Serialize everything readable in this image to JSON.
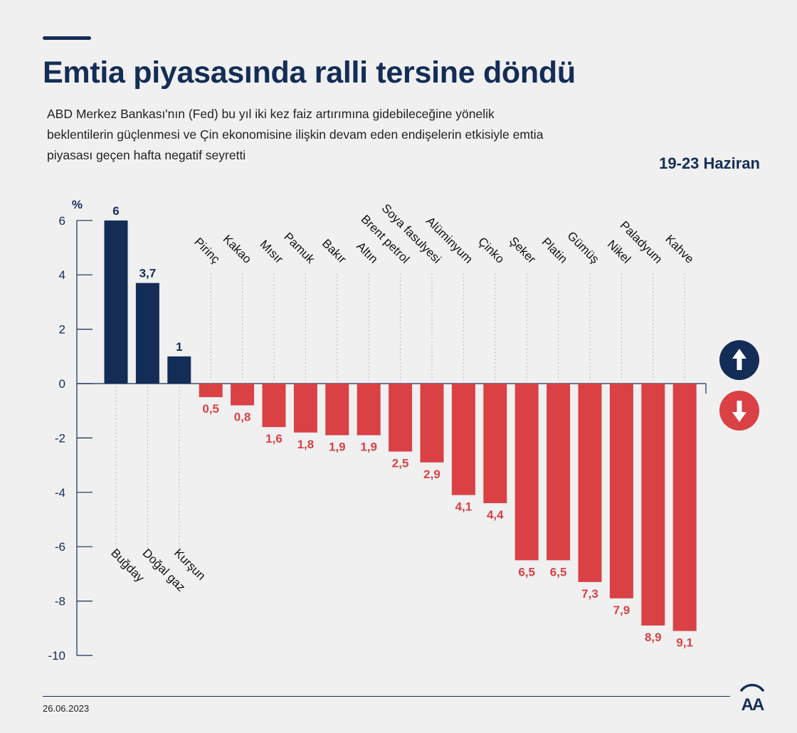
{
  "header": {
    "title": "Emtia piyasasında ralli tersine döndü",
    "subtitle": "ABD Merkez Bankası'nın (Fed) bu yıl iki kez faiz artırımına gidebileceğine yönelik beklentilerin güçlenmesi ve Çin ekonomisine ilişkin devam eden endişelerin etkisiyle emtia piyasası geçen hafta negatif seyretti",
    "date_range": "19-23 Haziran"
  },
  "footer": {
    "date": "26.06.2023",
    "logo_text": "AA"
  },
  "legend": {
    "up_icon": "arrow-up-icon",
    "down_icon": "arrow-down-icon"
  },
  "colors": {
    "positive": "#142d57",
    "negative": "#d94145",
    "background": "#f0f0f0"
  },
  "chart_data": {
    "type": "bar",
    "title": "Emtia piyasasında ralli tersine döndü",
    "ylabel": "%",
    "xlabel": "",
    "ylim": [
      -10,
      6
    ],
    "yticks": [
      6,
      4,
      2,
      0,
      -2,
      -4,
      -6,
      -8,
      -10
    ],
    "categories": [
      "Buğday",
      "Doğal gaz",
      "Kurşun",
      "Pirinç",
      "Kakao",
      "Mısır",
      "Pamuk",
      "Bakır",
      "Altın",
      "Brent petrol",
      "Soya fasulyesi",
      "Alüminyum",
      "Çinko",
      "Şeker",
      "Platin",
      "Gümüş",
      "Nikel",
      "Paladyum",
      "Kahve"
    ],
    "values": [
      6,
      3.7,
      1,
      -0.5,
      -0.8,
      -1.6,
      -1.8,
      -1.9,
      -1.9,
      -2.5,
      -2.9,
      -4.1,
      -4.4,
      -6.5,
      -6.5,
      -7.3,
      -7.9,
      -8.9,
      -9.1
    ],
    "value_labels": [
      "6",
      "3,7",
      "1",
      "0,5",
      "0,8",
      "1,6",
      "1,8",
      "1,9",
      "1,9",
      "2,5",
      "2,9",
      "4,1",
      "4,4",
      "6,5",
      "6,5",
      "7,3",
      "7,9",
      "8,9",
      "9,1"
    ],
    "grid": false,
    "legend": "right"
  }
}
